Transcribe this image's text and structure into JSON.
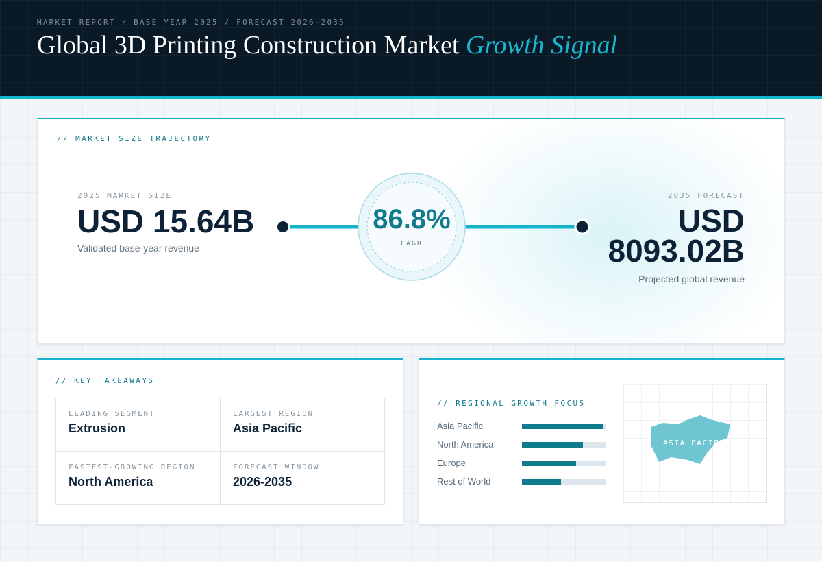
{
  "header": {
    "eyebrow": "MARKET REPORT / BASE YEAR 2025 / FORECAST 2026-2035",
    "title_main": "Global 3D Printing Construction Market",
    "title_accent": "Growth Signal"
  },
  "trajectory": {
    "label": "// MARKET SIZE TRAJECTORY",
    "base_caption": "2025 MARKET SIZE",
    "base_value": "USD 15.64B",
    "base_sub": "Validated base-year revenue",
    "cagr_value": "86.8%",
    "cagr_label": "CAGR",
    "forecast_caption": "2035 FORECAST",
    "forecast_value": "USD 8093.02B",
    "forecast_sub": "Projected global revenue"
  },
  "takeaways": {
    "label": "// KEY TAKEAWAYS",
    "items": [
      {
        "key": "LEADING SEGMENT",
        "value": "Extrusion"
      },
      {
        "key": "LARGEST REGION",
        "value": "Asia Pacific"
      },
      {
        "key": "FASTEST-GROWING REGION",
        "value": "North America"
      },
      {
        "key": "FORECAST WINDOW",
        "value": "2026-2035"
      }
    ]
  },
  "regional": {
    "label": "// REGIONAL GROWTH FOCUS",
    "map_label": "ASIA PACIFIC"
  },
  "chart_data": {
    "type": "bar",
    "orientation": "horizontal",
    "categories": [
      "Asia Pacific",
      "North America",
      "Europe",
      "Rest of World"
    ],
    "values": [
      0.96,
      0.72,
      0.64,
      0.46
    ],
    "xlim": [
      0,
      1
    ],
    "colors": {
      "bar": "#0f7b8c",
      "track": "#dde6ec"
    }
  },
  "colors": {
    "accent": "#14b4cc",
    "teal": "#0f7b8c",
    "navy": "#0a1926"
  }
}
